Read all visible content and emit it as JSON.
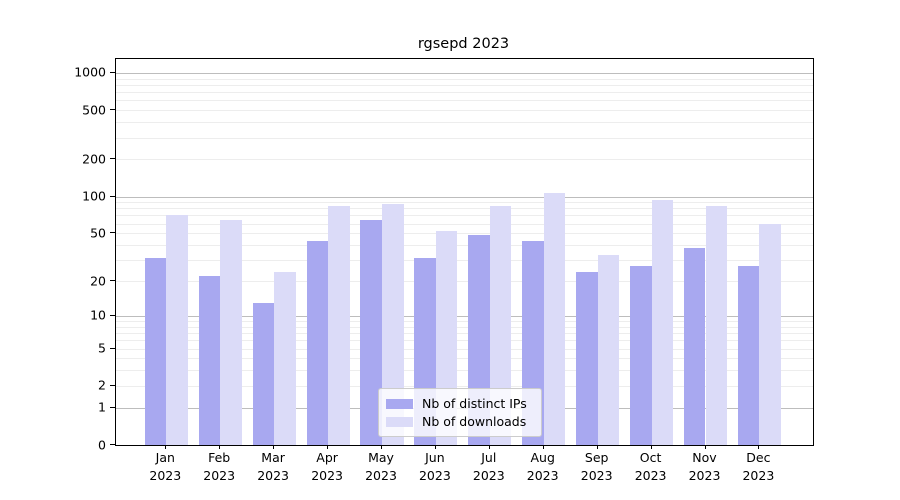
{
  "chart_data": {
    "type": "bar",
    "title": "rgsepd 2023",
    "months": [
      "Jan",
      "Feb",
      "Mar",
      "Apr",
      "May",
      "Jun",
      "Jul",
      "Aug",
      "Sep",
      "Oct",
      "Nov",
      "Dec"
    ],
    "year": "2023",
    "categories": [
      "Jan 2023",
      "Feb 2023",
      "Mar 2023",
      "Apr 2023",
      "May 2023",
      "Jun 2023",
      "Jul 2023",
      "Aug 2023",
      "Sep 2023",
      "Oct 2023",
      "Nov 2023",
      "Dec 2023"
    ],
    "series": [
      {
        "name": "Nb of distinct IPs",
        "color": "#a8a8f0",
        "values": [
          31,
          22,
          13,
          43,
          64,
          31,
          48,
          43,
          24,
          27,
          38,
          27
        ]
      },
      {
        "name": "Nb of downloads",
        "color": "#dbdbf8",
        "values": [
          70,
          64,
          24,
          83,
          87,
          52,
          83,
          106,
          33,
          94,
          84,
          60
        ]
      }
    ],
    "xlabel": "",
    "ylabel": "",
    "y_ticks": [
      0,
      1,
      2,
      5,
      10,
      20,
      50,
      100,
      200,
      500,
      1000
    ],
    "y_scale": "log1p",
    "ylim": [
      0,
      1300
    ],
    "grid": true,
    "gridline_major_color": "#bdbdbd",
    "gridline_minor_color": "#ededed",
    "legend_position": "lower center"
  }
}
